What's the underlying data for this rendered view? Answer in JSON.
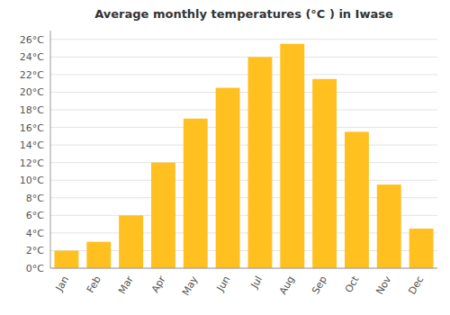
{
  "chart_data": {
    "type": "bar",
    "title": "Average monthly temperatures (°C ) in Iwase",
    "categories": [
      "Jan",
      "Feb",
      "Mar",
      "Apr",
      "May",
      "Jun",
      "Jul",
      "Aug",
      "Sep",
      "Oct",
      "Nov",
      "Dec"
    ],
    "values": [
      2,
      3,
      6,
      12,
      17,
      20.5,
      24,
      25.5,
      21.5,
      15.5,
      9.5,
      4.5
    ],
    "color": "#FFC020",
    "ylim": [
      0,
      27
    ],
    "yticks": [
      {
        "value": 0,
        "label": "0°C"
      },
      {
        "value": 2,
        "label": "2°C"
      },
      {
        "value": 4,
        "label": "4°C"
      },
      {
        "value": 6,
        "label": "6°C"
      },
      {
        "value": 8,
        "label": "8°C"
      },
      {
        "value": 10,
        "label": "10°C"
      },
      {
        "value": 12,
        "label": "12°C"
      },
      {
        "value": 14,
        "label": "14°C"
      },
      {
        "value": 16,
        "label": "16°C"
      },
      {
        "value": 18,
        "label": "18°C"
      },
      {
        "value": 20,
        "label": "20°C"
      },
      {
        "value": 22,
        "label": "22°C"
      },
      {
        "value": 24,
        "label": "24°C"
      },
      {
        "value": 26,
        "label": "26°C"
      }
    ],
    "grid": true
  }
}
